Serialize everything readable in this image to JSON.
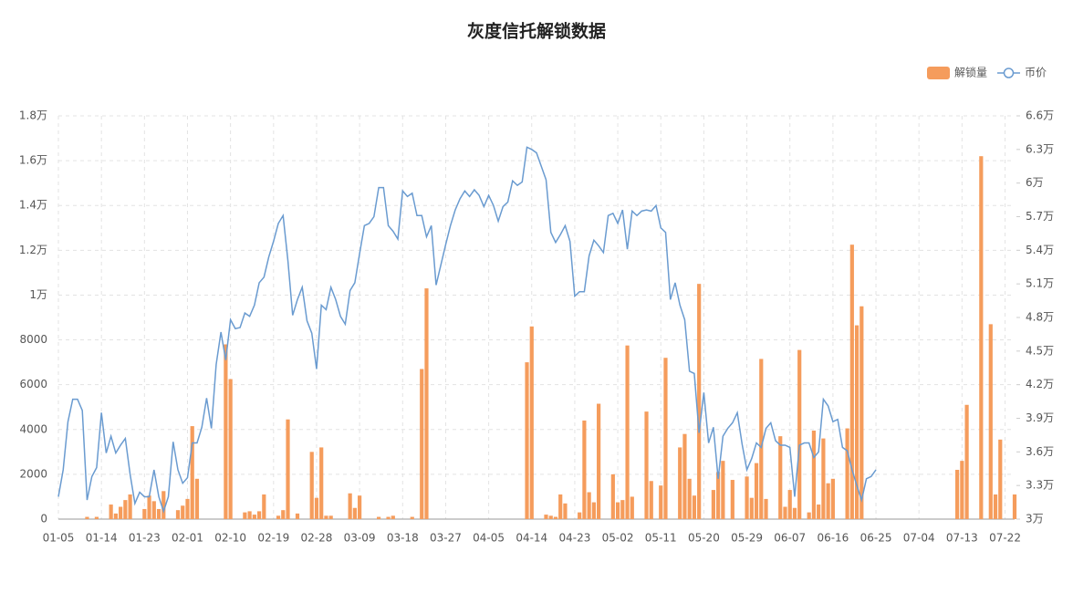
{
  "chart_data": {
    "type": "combo",
    "title": "灰度信托解锁数据",
    "categories": [
      "01-05",
      null,
      null,
      null,
      null,
      null,
      null,
      null,
      null,
      "01-14",
      null,
      null,
      null,
      null,
      null,
      null,
      null,
      null,
      "01-23",
      null,
      null,
      null,
      null,
      null,
      null,
      null,
      null,
      "02-01",
      null,
      null,
      null,
      null,
      null,
      null,
      null,
      null,
      "02-10",
      null,
      null,
      null,
      null,
      null,
      null,
      null,
      null,
      "02-19",
      null,
      null,
      null,
      null,
      null,
      null,
      null,
      null,
      "02-28",
      null,
      null,
      null,
      null,
      null,
      null,
      null,
      null,
      "03-09",
      null,
      null,
      null,
      null,
      null,
      null,
      null,
      null,
      "03-18",
      null,
      null,
      null,
      null,
      null,
      null,
      null,
      null,
      "03-27",
      null,
      null,
      null,
      null,
      null,
      null,
      null,
      null,
      "04-05",
      null,
      null,
      null,
      null,
      null,
      null,
      null,
      null,
      "04-14",
      null,
      null,
      null,
      null,
      null,
      null,
      null,
      null,
      "04-23",
      null,
      null,
      null,
      null,
      null,
      null,
      null,
      null,
      "05-02",
      null,
      null,
      null,
      null,
      null,
      null,
      null,
      null,
      "05-11",
      null,
      null,
      null,
      null,
      null,
      null,
      null,
      null,
      "05-20",
      null,
      null,
      null,
      null,
      null,
      null,
      null,
      null,
      "05-29",
      null,
      null,
      null,
      null,
      null,
      null,
      null,
      null,
      "06-07",
      null,
      null,
      null,
      null,
      null,
      null,
      null,
      null,
      "06-16",
      null,
      null,
      null,
      null,
      null,
      null,
      null,
      null,
      "06-25",
      null,
      null,
      null,
      null,
      null,
      null,
      null,
      null,
      "07-04",
      null,
      null,
      null,
      null,
      null,
      null,
      null,
      null,
      "07-13",
      null,
      null,
      null,
      null,
      null,
      null,
      null,
      null,
      "07-22",
      null,
      null
    ],
    "series": [
      {
        "name": "解锁量",
        "type": "bar",
        "color": "#f59c5c",
        "values": [
          0,
          0,
          0,
          0,
          0,
          0,
          100,
          0,
          100,
          0,
          0,
          650,
          250,
          550,
          850,
          1100,
          0,
          0,
          450,
          1050,
          800,
          450,
          1250,
          0,
          0,
          400,
          600,
          900,
          4150,
          1800,
          0,
          0,
          0,
          0,
          0,
          7800,
          6250,
          0,
          0,
          300,
          350,
          200,
          350,
          1100,
          0,
          0,
          150,
          400,
          4450,
          0,
          250,
          0,
          0,
          3000,
          950,
          3200,
          150,
          150,
          0,
          0,
          0,
          1150,
          500,
          1050,
          0,
          0,
          0,
          100,
          0,
          100,
          150,
          0,
          0,
          0,
          100,
          0,
          6700,
          10300,
          0,
          0,
          0,
          0,
          0,
          0,
          0,
          0,
          0,
          0,
          0,
          0,
          0,
          0,
          0,
          0,
          0,
          0,
          0,
          0,
          7000,
          8600,
          0,
          0,
          200,
          150,
          100,
          1100,
          700,
          0,
          0,
          300,
          4400,
          1200,
          750,
          5150,
          0,
          0,
          2000,
          750,
          850,
          7750,
          1000,
          0,
          0,
          4800,
          1700,
          0,
          1500,
          7200,
          0,
          0,
          3200,
          3800,
          1800,
          1050,
          10500,
          0,
          0,
          1300,
          2100,
          2600,
          0,
          1750,
          0,
          0,
          1900,
          950,
          2500,
          7150,
          900,
          0,
          0,
          3700,
          550,
          1300,
          500,
          7550,
          0,
          300,
          3950,
          650,
          3600,
          1600,
          1800,
          0,
          0,
          4050,
          12250,
          8650,
          9500,
          0,
          0,
          0,
          0,
          0,
          0,
          0,
          0,
          0,
          0,
          0,
          0,
          0,
          0,
          0,
          0,
          0,
          0,
          0,
          2200,
          2600,
          5100,
          0,
          0,
          16200,
          0,
          8700,
          1100,
          3550,
          0,
          0,
          1100
        ]
      },
      {
        "name": "币价",
        "type": "line",
        "color": "#6a9bd0",
        "axis": "y2",
        "values": [
          32000,
          34400,
          38700,
          40700,
          40700,
          39700,
          31700,
          33800,
          34600,
          39500,
          35900,
          37400,
          35900,
          36600,
          37200,
          34000,
          31400,
          32400,
          32000,
          32000,
          34400,
          32000,
          30700,
          32000,
          36900,
          34400,
          33200,
          33700,
          36800,
          36800,
          38200,
          40800,
          38100,
          43800,
          46700,
          44200,
          47800,
          47000,
          47100,
          48400,
          48100,
          49100,
          51100,
          51600,
          53400,
          54800,
          56400,
          57100,
          53100,
          48200,
          49600,
          50700,
          47700,
          46600,
          43400,
          49100,
          48700,
          50700,
          49600,
          48100,
          47400,
          50400,
          51100,
          53700,
          56200,
          56400,
          57000,
          59600,
          59600,
          56200,
          55700,
          55000,
          59300,
          58800,
          59100,
          57100,
          57100,
          55200,
          56200,
          50900,
          52700,
          54500,
          56200,
          57600,
          58600,
          59300,
          58800,
          59400,
          58900,
          57900,
          58900,
          58000,
          56600,
          57900,
          58300,
          60200,
          59800,
          60100,
          63200,
          63000,
          62700,
          61500,
          60300,
          55600,
          54700,
          55400,
          56200,
          54800,
          49900,
          50300,
          50300,
          53500,
          54900,
          54400,
          53800,
          57100,
          57300,
          56400,
          57600,
          54100,
          57500,
          57100,
          57500,
          57600,
          57500,
          58000,
          56000,
          55600,
          49600,
          51100,
          49100,
          47800,
          43200,
          43000,
          37700,
          41300,
          36800,
          38200,
          33600,
          37400,
          38100,
          38600,
          39500,
          36700,
          34400,
          35400,
          36800,
          36400,
          38100,
          38600,
          37000,
          36600,
          36600,
          36400,
          32000,
          36600,
          36800,
          36800,
          35500,
          36000,
          40700,
          40100,
          38700,
          38900,
          36400,
          36100,
          34400,
          33000,
          31700,
          33600,
          33800,
          34400,
          null,
          null,
          null,
          null,
          null,
          null,
          null,
          null,
          null,
          null,
          null,
          null,
          null,
          null,
          null,
          null,
          null,
          null,
          null,
          null,
          null,
          null,
          null,
          null,
          null,
          null,
          null,
          null,
          null
        ]
      }
    ],
    "ylim": [
      0,
      18000
    ],
    "yticks": [
      0,
      2000,
      4000,
      6000,
      8000,
      {
        "value": 10000,
        "label": "1万"
      },
      {
        "value": 12000,
        "label": "1.2万"
      },
      {
        "value": 14000,
        "label": "1.4万"
      },
      {
        "value": 16000,
        "label": "1.6万"
      },
      {
        "value": 18000,
        "label": "1.8万"
      }
    ],
    "y2lim": [
      30000,
      66000
    ],
    "y2ticks": [
      {
        "value": 30000,
        "label": "3万"
      },
      {
        "value": 33000,
        "label": "3.3万"
      },
      {
        "value": 36000,
        "label": "3.6万"
      },
      {
        "value": 39000,
        "label": "3.9万"
      },
      {
        "value": 42000,
        "label": "4.2万"
      },
      {
        "value": 45000,
        "label": "4.5万"
      },
      {
        "value": 48000,
        "label": "4.8万"
      },
      {
        "value": 51000,
        "label": "5.1万"
      },
      {
        "value": 54000,
        "label": "5.4万"
      },
      {
        "value": 57000,
        "label": "5.7万"
      },
      {
        "value": 60000,
        "label": "6万"
      },
      {
        "value": 63000,
        "label": "6.3万"
      },
      {
        "value": 66000,
        "label": "6.6万"
      }
    ],
    "grid": true,
    "legend": "top-right"
  }
}
